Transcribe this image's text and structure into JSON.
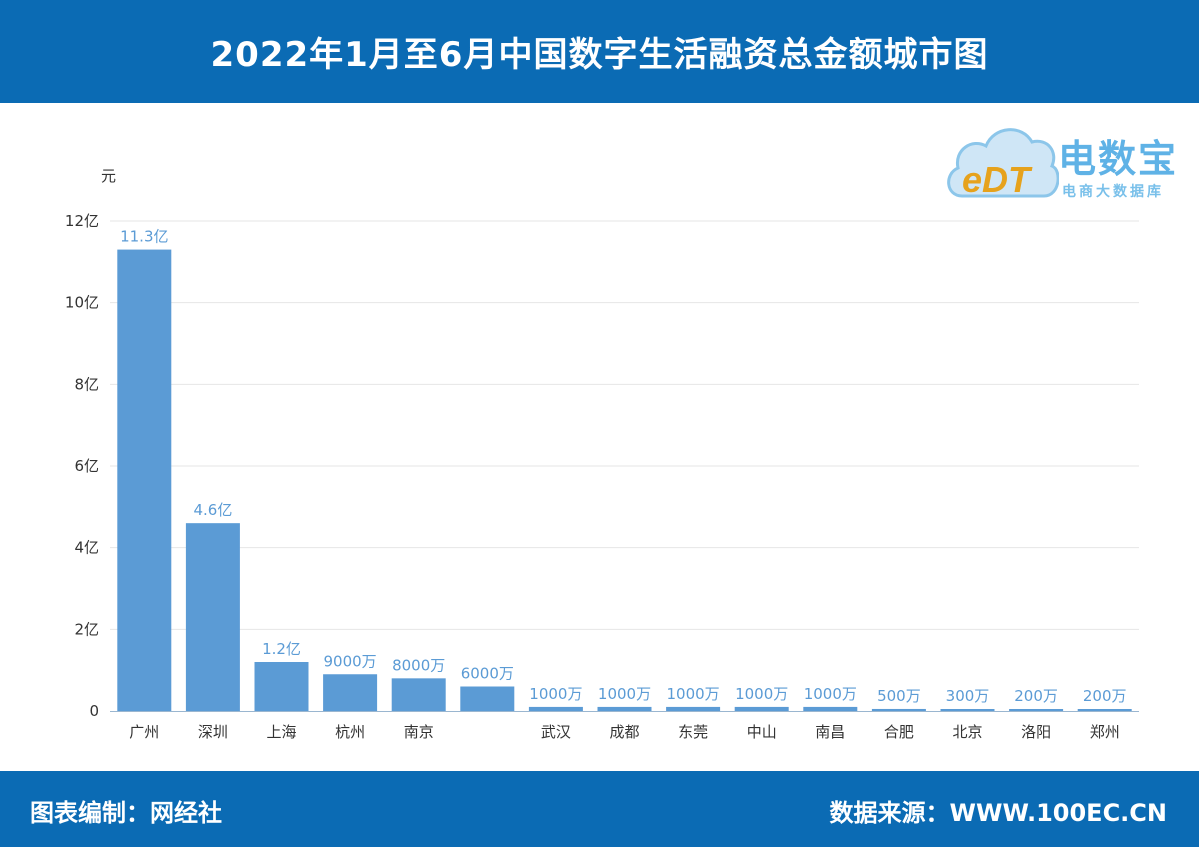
{
  "header": {
    "title": "2022年1月至6月中国数字生活融资总金额城市图"
  },
  "logo": {
    "brand": "电数宝",
    "subtitle": "电商大数据库",
    "mark": "eDT"
  },
  "footer": {
    "left": "图表编制：网经社",
    "right": "数据来源：WWW.100EC.CN"
  },
  "chart_data": {
    "type": "bar",
    "y_unit": "元",
    "y_ticks": [
      "0",
      "2亿",
      "4亿",
      "6亿",
      "8亿",
      "10亿",
      "12亿"
    ],
    "ylim": [
      0,
      1200000000
    ],
    "grid": true,
    "categories": [
      "广州",
      "深圳",
      "上海",
      "杭州",
      "南京",
      "",
      "武汉",
      "成都",
      "东莞",
      "中山",
      "南昌",
      "合肥",
      "北京",
      "洛阳",
      "郑州"
    ],
    "values": [
      1130000000,
      460000000,
      120000000,
      90000000,
      80000000,
      60000000,
      10000000,
      10000000,
      10000000,
      10000000,
      10000000,
      5000000,
      3000000,
      2000000,
      2000000
    ],
    "value_labels": [
      "11.3亿",
      "4.6亿",
      "1.2亿",
      "9000万",
      "8000万",
      "6000万",
      "1000万",
      "1000万",
      "1000万",
      "1000万",
      "1000万",
      "500万",
      "300万",
      "200万",
      "200万"
    ],
    "bar_color": "#5b9bd5",
    "label_color": "#5b9bd5"
  }
}
